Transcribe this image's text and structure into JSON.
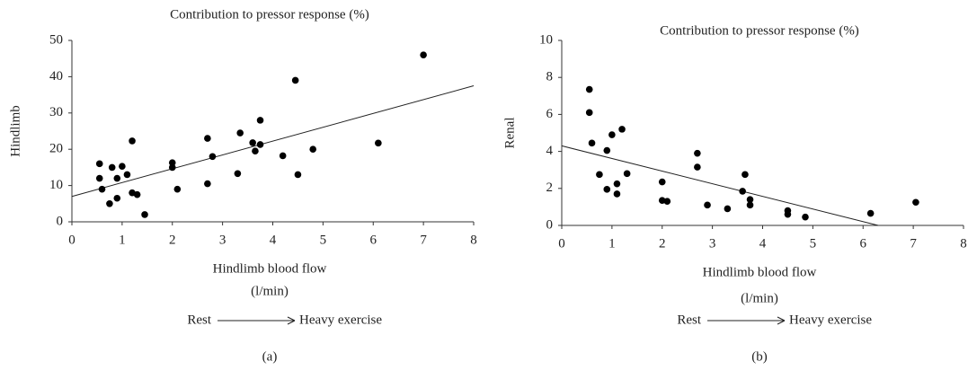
{
  "chart_data": [
    {
      "type": "scatter",
      "title": "Contribution to pressor response (%)",
      "ylabel": "Hindlimb",
      "xlabel": "Hindlimb blood flow",
      "xunit": "(l/min)",
      "annotations": [
        "Rest",
        "Heavy exercise"
      ],
      "panel": "(a)",
      "color": "#000000",
      "x": [
        0.55,
        0.55,
        0.6,
        0.75,
        0.8,
        0.9,
        0.9,
        1.0,
        1.1,
        1.2,
        1.2,
        1.3,
        1.45,
        2.0,
        2.0,
        2.1,
        2.7,
        2.7,
        2.8,
        3.3,
        3.35,
        3.6,
        3.65,
        3.75,
        3.75,
        4.2,
        4.45,
        4.5,
        4.8,
        6.1,
        7.0
      ],
      "values": [
        16,
        12,
        9,
        5,
        15,
        12,
        6.5,
        15.3,
        13,
        22.3,
        8,
        7.5,
        2,
        16.3,
        15,
        9,
        23,
        10.5,
        18,
        13.3,
        24.5,
        21.8,
        19.5,
        28,
        21.3,
        18.2,
        39,
        13,
        20,
        21.7,
        46
      ],
      "trendline": {
        "x": [
          0,
          8
        ],
        "y": [
          7,
          37.5
        ]
      },
      "xlim": [
        0,
        8
      ],
      "xticks": [
        0,
        1,
        2,
        3,
        4,
        5,
        6,
        7,
        8
      ],
      "ylim": [
        0,
        50
      ],
      "yticks": [
        0,
        10,
        20,
        30,
        40,
        50
      ]
    },
    {
      "type": "scatter",
      "title": "Contribution to pressor response (%)",
      "ylabel": "Renal",
      "xlabel": "Hindlimb blood flow",
      "xunit": "(l/min)",
      "annotations": [
        "Rest",
        "Heavy exercise"
      ],
      "panel": "(b)",
      "color": "#000000",
      "x": [
        0.55,
        0.55,
        0.6,
        0.75,
        0.9,
        0.9,
        1.0,
        1.1,
        1.1,
        1.2,
        1.3,
        2.0,
        2.0,
        2.1,
        2.7,
        2.7,
        2.9,
        3.3,
        3.6,
        3.65,
        3.75,
        3.75,
        4.5,
        4.5,
        4.85,
        6.15,
        7.05
      ],
      "values": [
        7.35,
        6.1,
        4.45,
        2.75,
        4.05,
        1.95,
        4.9,
        2.25,
        1.7,
        5.2,
        2.8,
        2.35,
        1.35,
        1.3,
        3.9,
        3.15,
        1.1,
        0.9,
        1.85,
        2.75,
        1.4,
        1.1,
        0.8,
        0.6,
        0.45,
        0.65,
        1.25
      ],
      "trendline": {
        "x": [
          0,
          6.3
        ],
        "y": [
          4.3,
          0
        ]
      },
      "xlim": [
        0,
        8
      ],
      "xticks": [
        0,
        1,
        2,
        3,
        4,
        5,
        6,
        7,
        8
      ],
      "ylim": [
        0,
        10
      ],
      "yticks": [
        0,
        2,
        4,
        6,
        8,
        10
      ]
    }
  ]
}
